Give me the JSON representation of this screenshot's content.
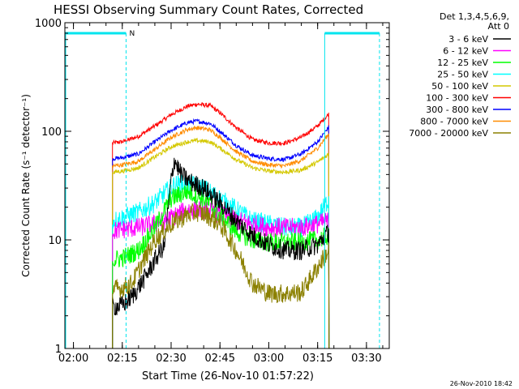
{
  "chart_data": {
    "type": "line",
    "title": "HESSI Observing Summary Count Rates, Corrected",
    "xlabel": "Start Time (26-Nov-10 01:57:22)",
    "ylabel": "Corrected Count Rate (s⁻¹ detector⁻¹)",
    "yscale": "log",
    "ylim": [
      1,
      1000
    ],
    "xlim": [
      "01:57:22",
      "03:37:00"
    ],
    "x_ticks": [
      "02:00",
      "02:15",
      "02:30",
      "02:45",
      "03:00",
      "03:15",
      "03:30"
    ],
    "y_ticks": [
      "1",
      "10",
      "100",
      "1000"
    ],
    "timestamp": "26-Nov-2010 18:42",
    "legend": {
      "placement": "right",
      "header": [
        "Det 1,3,4,5,6,9,",
        "Att 0"
      ],
      "entries": [
        {
          "label": "3 - 6 keV",
          "color": "#000000"
        },
        {
          "label": "6 - 12 keV",
          "color": "#ff00ff"
        },
        {
          "label": "12 - 25 keV",
          "color": "#00ff00"
        },
        {
          "label": "25 - 50 keV",
          "color": "#00ffff"
        },
        {
          "label": "50 - 100 keV",
          "color": "#d4c800"
        },
        {
          "label": "100 - 300 keV",
          "color": "#ff0000"
        },
        {
          "label": "300 - 800 keV",
          "color": "#0000ff"
        },
        {
          "label": "800 - 7000 keV",
          "color": "#ff8c00"
        },
        {
          "label": "7000 - 20000 keV",
          "color": "#8b8000"
        }
      ]
    },
    "annotations": {
      "night_label": "N",
      "night_markers": [
        {
          "start": "01:57:22",
          "end": "02:16:10"
        },
        {
          "start": "03:17:10",
          "end": "03:34:00"
        }
      ]
    },
    "series": [
      {
        "name": "100 - 300 keV",
        "color": "#ff0000",
        "x": [
          "02:12:00",
          "02:15:00",
          "02:20:00",
          "02:25:00",
          "02:30:00",
          "02:35:00",
          "02:38:00",
          "02:42:00",
          "02:45:00",
          "02:50:00",
          "02:55:00",
          "03:00:00",
          "03:05:00",
          "03:10:00",
          "03:15:00",
          "03:18:30"
        ],
        "y": [
          78,
          80,
          90,
          112,
          142,
          170,
          178,
          172,
          148,
          108,
          84,
          78,
          78,
          88,
          112,
          145
        ]
      },
      {
        "name": "300 - 800 keV",
        "color": "#0000ff",
        "x": [
          "02:12:00",
          "02:15:00",
          "02:20:00",
          "02:25:00",
          "02:30:00",
          "02:35:00",
          "02:38:00",
          "02:42:00",
          "02:45:00",
          "02:50:00",
          "02:55:00",
          "03:00:00",
          "03:05:00",
          "03:10:00",
          "03:15:00",
          "03:18:30"
        ],
        "y": [
          56,
          57,
          62,
          80,
          102,
          120,
          124,
          118,
          100,
          74,
          60,
          56,
          55,
          62,
          80,
          110
        ]
      },
      {
        "name": "800 - 7000 keV",
        "color": "#ff8c00",
        "x": [
          "02:12:00",
          "02:15:00",
          "02:20:00",
          "02:25:00",
          "02:30:00",
          "02:35:00",
          "02:38:00",
          "02:42:00",
          "02:45:00",
          "02:50:00",
          "02:55:00",
          "03:00:00",
          "03:05:00",
          "03:10:00",
          "03:15:00",
          "03:18:30"
        ],
        "y": [
          48,
          49,
          53,
          68,
          88,
          104,
          108,
          103,
          88,
          65,
          53,
          49,
          48,
          54,
          70,
          95
        ]
      },
      {
        "name": "50 - 100 keV",
        "color": "#d4c800",
        "x": [
          "02:12:00",
          "02:15:00",
          "02:20:00",
          "02:25:00",
          "02:30:00",
          "02:35:00",
          "02:38:00",
          "02:42:00",
          "02:45:00",
          "02:50:00",
          "02:55:00",
          "03:00:00",
          "03:05:00",
          "03:10:00",
          "03:15:00",
          "03:18:30"
        ],
        "y": [
          42,
          43,
          46,
          58,
          72,
          80,
          82,
          80,
          70,
          55,
          46,
          43,
          42,
          44,
          52,
          62
        ]
      },
      {
        "name": "25 - 50 keV",
        "color": "#00ffff",
        "x": [
          "02:12:00",
          "02:15:00",
          "02:20:00",
          "02:25:00",
          "02:28:00",
          "02:31:00",
          "02:35:00",
          "02:40:00",
          "02:45:00",
          "02:50:00",
          "02:55:00",
          "03:00:00",
          "03:05:00",
          "03:10:00",
          "03:15:00",
          "03:18:30"
        ],
        "y": [
          15,
          16,
          18,
          22,
          27,
          32,
          33,
          30,
          24,
          19,
          15,
          14,
          13,
          13,
          16,
          24
        ]
      },
      {
        "name": "6 - 12 keV",
        "color": "#ff00ff",
        "x": [
          "02:12:00",
          "02:15:00",
          "02:20:00",
          "02:25:00",
          "02:30:00",
          "02:35:00",
          "02:40:00",
          "02:45:00",
          "02:50:00",
          "02:55:00",
          "03:00:00",
          "03:05:00",
          "03:10:00",
          "03:15:00",
          "03:18:30"
        ],
        "y": [
          12,
          12.5,
          13,
          14,
          16,
          19,
          19,
          17,
          15,
          14,
          13,
          13,
          13,
          14,
          15
        ]
      },
      {
        "name": "12 - 25 keV",
        "color": "#00ff00",
        "x": [
          "02:12:00",
          "02:15:00",
          "02:20:00",
          "02:25:00",
          "02:30:00",
          "02:35:00",
          "02:40:00",
          "02:45:00",
          "02:50:00",
          "02:55:00",
          "03:00:00",
          "03:05:00",
          "03:10:00",
          "03:15:00",
          "03:18:30"
        ],
        "y": [
          6.5,
          6.8,
          8,
          13,
          24,
          28,
          24,
          17,
          12,
          10,
          9.5,
          9.5,
          9.5,
          10,
          11
        ]
      },
      {
        "name": "3 - 6 keV",
        "color": "#000000",
        "x": [
          "02:12:00",
          "02:15:00",
          "02:18:00",
          "02:22:00",
          "02:25:00",
          "02:28:00",
          "02:30:00",
          "02:31:00",
          "02:33:00",
          "02:36:00",
          "02:40:00",
          "02:45:00",
          "02:50:00",
          "02:55:00",
          "03:00:00",
          "03:05:00",
          "03:10:00",
          "03:15:00",
          "03:18:30"
        ],
        "y": [
          2.4,
          2.5,
          3,
          4.5,
          6.5,
          9,
          35,
          55,
          40,
          34,
          30,
          22,
          15,
          11,
          9,
          8,
          8,
          9,
          12
        ]
      },
      {
        "name": "7000 - 20000 keV",
        "color": "#8b8000",
        "x": [
          "02:12:00",
          "02:15:00",
          "02:18:00",
          "02:21:00",
          "02:25:00",
          "02:30:00",
          "02:35:00",
          "02:38:00",
          "02:41:00",
          "02:45:00",
          "02:50:00",
          "02:55:00",
          "03:00:00",
          "03:05:00",
          "03:10:00",
          "03:14:00",
          "03:17:00",
          "03:18:30"
        ],
        "y": [
          3.5,
          3.6,
          4,
          6,
          10,
          14,
          17,
          18,
          17,
          14,
          8,
          4,
          3.2,
          3.2,
          3.3,
          5,
          7,
          8
        ]
      }
    ]
  }
}
